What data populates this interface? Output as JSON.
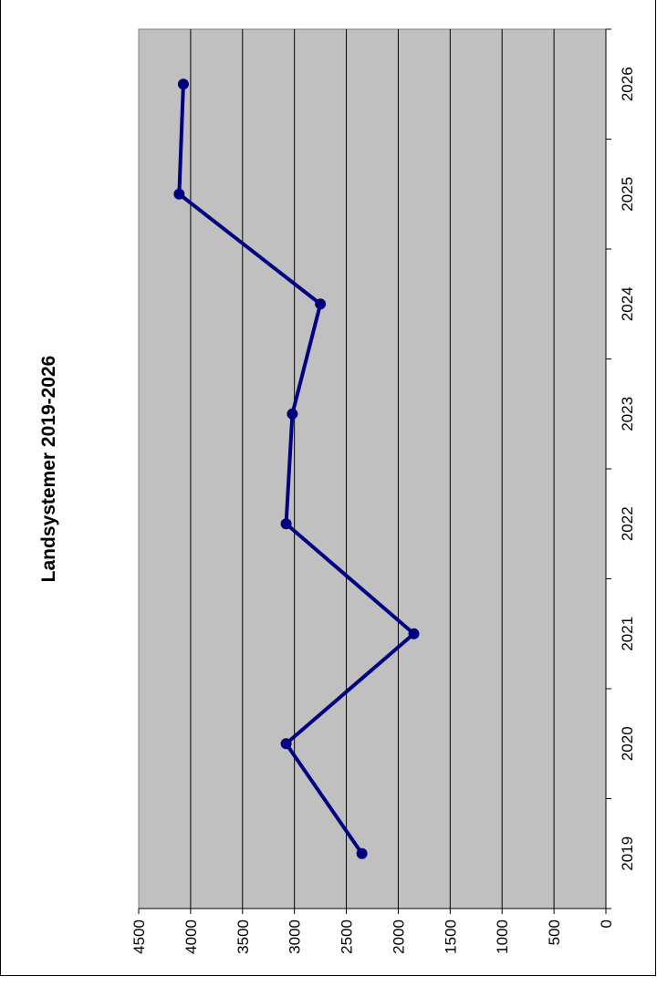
{
  "chart_data": {
    "type": "line",
    "title": "Landsystemer 2019-2026",
    "xlabel": "",
    "ylabel": "",
    "categories": [
      "2019",
      "2020",
      "2021",
      "2022",
      "2023",
      "2024",
      "2025",
      "2026"
    ],
    "series": [
      {
        "values": [
          2350,
          3080,
          1850,
          3080,
          3020,
          2750,
          4110,
          4070
        ]
      }
    ],
    "ylim": [
      0,
      4500
    ],
    "yticks": [
      "0",
      "500",
      "1000",
      "1500",
      "2000",
      "2500",
      "3000",
      "3500",
      "4000",
      "4500"
    ],
    "orientation": "rotated 90 degrees clockwise",
    "grid": true,
    "legend": "none",
    "colors": {
      "plot_background": "#c0c0c0",
      "series": "#000080",
      "gridline": "#000000"
    }
  }
}
